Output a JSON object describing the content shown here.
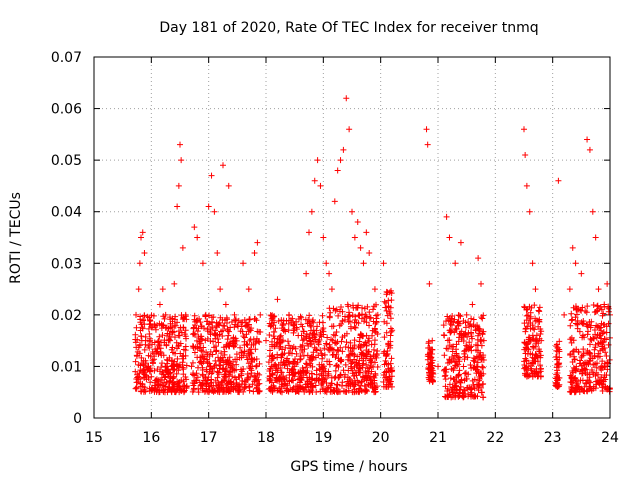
{
  "chart_data": {
    "type": "scatter",
    "title": "Day 181 of 2020, Rate Of TEC Index for receiver tnmq",
    "xlabel": "GPS time / hours",
    "ylabel": "ROTI / TECUs",
    "xlim": [
      15,
      24
    ],
    "ylim": [
      0,
      0.07
    ],
    "x_ticks": [
      15,
      16,
      17,
      18,
      19,
      20,
      21,
      22,
      23,
      24
    ],
    "x_tick_labels": [
      "15",
      "16",
      "17",
      "18",
      "19",
      "20",
      "21",
      "22",
      "23",
      "24"
    ],
    "y_ticks": [
      0,
      0.01,
      0.02,
      0.03,
      0.04,
      0.05,
      0.06,
      0.07
    ],
    "y_tick_labels": [
      "0",
      "0.01",
      "0.02",
      "0.03",
      "0.04",
      "0.05",
      "0.06",
      "0.07"
    ],
    "grid": true,
    "marker": "+",
    "color": "#ff0000",
    "series": [
      {
        "points": [
          [
            15.72,
            0.009
          ],
          [
            15.75,
            0.012
          ],
          [
            15.78,
            0.025
          ],
          [
            15.8,
            0.03
          ],
          [
            15.82,
            0.035
          ],
          [
            15.85,
            0.036
          ],
          [
            15.88,
            0.032
          ],
          [
            15.9,
            0.015
          ],
          [
            15.95,
            0.01
          ],
          [
            16.0,
            0.008
          ],
          [
            16.05,
            0.012
          ],
          [
            16.1,
            0.018
          ],
          [
            16.15,
            0.022
          ],
          [
            16.2,
            0.025
          ],
          [
            16.25,
            0.02
          ],
          [
            16.3,
            0.015
          ],
          [
            16.35,
            0.01
          ],
          [
            16.4,
            0.026
          ],
          [
            16.45,
            0.041
          ],
          [
            16.48,
            0.045
          ],
          [
            16.5,
            0.053
          ],
          [
            16.52,
            0.05
          ],
          [
            16.55,
            0.033
          ],
          [
            16.6,
            0.02
          ],
          [
            16.7,
            0.01
          ],
          [
            16.75,
            0.037
          ],
          [
            16.8,
            0.035
          ],
          [
            16.9,
            0.03
          ],
          [
            16.95,
            0.02
          ],
          [
            17.0,
            0.041
          ],
          [
            17.05,
            0.047
          ],
          [
            17.1,
            0.04
          ],
          [
            17.15,
            0.032
          ],
          [
            17.2,
            0.025
          ],
          [
            17.25,
            0.049
          ],
          [
            17.3,
            0.022
          ],
          [
            17.35,
            0.045
          ],
          [
            17.45,
            0.02
          ],
          [
            17.5,
            0.018
          ],
          [
            17.6,
            0.03
          ],
          [
            17.7,
            0.025
          ],
          [
            17.8,
            0.032
          ],
          [
            17.85,
            0.034
          ],
          [
            17.9,
            0.02
          ],
          [
            18.0,
            0.015
          ],
          [
            18.1,
            0.012
          ],
          [
            18.2,
            0.023
          ],
          [
            18.3,
            0.018
          ],
          [
            18.4,
            0.02
          ],
          [
            18.5,
            0.01
          ],
          [
            18.6,
            0.012
          ],
          [
            18.7,
            0.028
          ],
          [
            18.75,
            0.036
          ],
          [
            18.8,
            0.04
          ],
          [
            18.85,
            0.046
          ],
          [
            18.9,
            0.05
          ],
          [
            18.95,
            0.045
          ],
          [
            19.0,
            0.035
          ],
          [
            19.05,
            0.03
          ],
          [
            19.1,
            0.028
          ],
          [
            19.15,
            0.025
          ],
          [
            19.2,
            0.042
          ],
          [
            19.25,
            0.048
          ],
          [
            19.3,
            0.05
          ],
          [
            19.35,
            0.052
          ],
          [
            19.4,
            0.062
          ],
          [
            19.45,
            0.056
          ],
          [
            19.5,
            0.04
          ],
          [
            19.55,
            0.035
          ],
          [
            19.6,
            0.038
          ],
          [
            19.65,
            0.033
          ],
          [
            19.7,
            0.03
          ],
          [
            19.75,
            0.036
          ],
          [
            19.8,
            0.032
          ],
          [
            19.9,
            0.025
          ],
          [
            19.95,
            0.02
          ],
          [
            20.05,
            0.03
          ],
          [
            20.1,
            0.012
          ],
          [
            20.8,
            0.056
          ],
          [
            20.82,
            0.053
          ],
          [
            20.85,
            0.026
          ],
          [
            20.9,
            0.015
          ],
          [
            21.0,
            0.01
          ],
          [
            21.1,
            0.018
          ],
          [
            21.15,
            0.039
          ],
          [
            21.2,
            0.035
          ],
          [
            21.3,
            0.03
          ],
          [
            21.4,
            0.034
          ],
          [
            21.5,
            0.02
          ],
          [
            21.6,
            0.022
          ],
          [
            21.7,
            0.031
          ],
          [
            21.75,
            0.026
          ],
          [
            21.8,
            0.015
          ],
          [
            22.5,
            0.056
          ],
          [
            22.52,
            0.051
          ],
          [
            22.55,
            0.045
          ],
          [
            22.6,
            0.04
          ],
          [
            22.65,
            0.03
          ],
          [
            22.7,
            0.025
          ],
          [
            22.8,
            0.015
          ],
          [
            23.1,
            0.046
          ],
          [
            23.2,
            0.02
          ],
          [
            23.3,
            0.025
          ],
          [
            23.35,
            0.033
          ],
          [
            23.4,
            0.03
          ],
          [
            23.5,
            0.028
          ],
          [
            23.6,
            0.054
          ],
          [
            23.65,
            0.052
          ],
          [
            23.7,
            0.04
          ],
          [
            23.75,
            0.035
          ],
          [
            23.8,
            0.025
          ],
          [
            23.9,
            0.022
          ],
          [
            23.95,
            0.026
          ],
          [
            24.0,
            0.02
          ]
        ],
        "dense_bands": [
          {
            "x": [
              15.72,
              16.62
            ],
            "y": [
              0.005,
              0.02
            ]
          },
          {
            "x": [
              16.72,
              17.9
            ],
            "y": [
              0.005,
              0.02
            ]
          },
          {
            "x": [
              18.05,
              19.1
            ],
            "y": [
              0.005,
              0.02
            ]
          },
          {
            "x": [
              19.1,
              19.95
            ],
            "y": [
              0.005,
              0.022
            ]
          },
          {
            "x": [
              20.05,
              20.2
            ],
            "y": [
              0.006,
              0.025
            ]
          },
          {
            "x": [
              20.82,
              20.92
            ],
            "y": [
              0.007,
              0.015
            ]
          },
          {
            "x": [
              21.1,
              21.8
            ],
            "y": [
              0.004,
              0.02
            ]
          },
          {
            "x": [
              22.5,
              22.8
            ],
            "y": [
              0.008,
              0.022
            ]
          },
          {
            "x": [
              23.05,
              23.12
            ],
            "y": [
              0.006,
              0.015
            ]
          },
          {
            "x": [
              23.3,
              24.0
            ],
            "y": [
              0.005,
              0.022
            ]
          }
        ]
      }
    ]
  }
}
